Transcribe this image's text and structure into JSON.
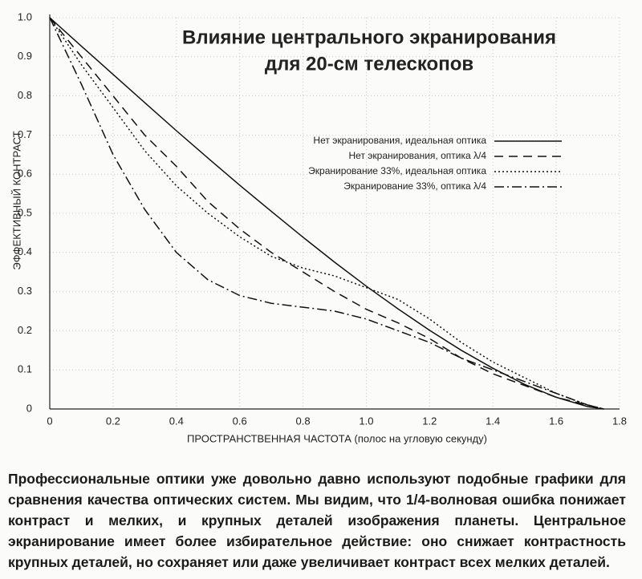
{
  "chart_data": {
    "type": "line",
    "title": [
      "Влияние центрального экранирования",
      "для 20-см телескопов"
    ],
    "x_label": "ПРОСТРАНСТВЕННАЯ ЧАСТОТА  (полос на угловую секунду)",
    "y_label": "ЭФФЕКТИВНЫЙ КОНТРАСТ",
    "x": [
      0,
      0.1,
      0.2,
      0.3,
      0.4,
      0.5,
      0.6,
      0.7,
      0.8,
      0.9,
      1.0,
      1.1,
      1.2,
      1.3,
      1.4,
      1.5,
      1.6,
      1.7,
      1.75
    ],
    "series": [
      {
        "name": "Нет экранирования, идеальная оптика",
        "color": "#111111",
        "dash": "",
        "values": [
          1,
          0.927,
          0.855,
          0.783,
          0.711,
          0.641,
          0.572,
          0.505,
          0.439,
          0.375,
          0.314,
          0.256,
          0.201,
          0.15,
          0.104,
          0.063,
          0.03,
          0.006,
          0
        ]
      },
      {
        "name": "Нет экранирования, оптика  λ/4",
        "color": "#111111",
        "dash": "11 7",
        "values": [
          1,
          0.9,
          0.8,
          0.7,
          0.62,
          0.53,
          0.46,
          0.4,
          0.35,
          0.3,
          0.255,
          0.22,
          0.18,
          0.13,
          0.09,
          0.06,
          0.03,
          0.01,
          0
        ]
      },
      {
        "name": "Экранирование 33%, идеальная оптика",
        "color": "#111111",
        "dash": "2 3",
        "values": [
          1,
          0.88,
          0.77,
          0.66,
          0.57,
          0.5,
          0.44,
          0.39,
          0.36,
          0.34,
          0.31,
          0.28,
          0.23,
          0.17,
          0.12,
          0.08,
          0.04,
          0.01,
          0
        ]
      },
      {
        "name": "Экранирование 33%, оптика  λ/4",
        "color": "#111111",
        "dash": "12 4 2 4",
        "values": [
          1,
          0.83,
          0.65,
          0.51,
          0.4,
          0.33,
          0.29,
          0.27,
          0.26,
          0.25,
          0.23,
          0.2,
          0.17,
          0.13,
          0.1,
          0.07,
          0.04,
          0.01,
          0
        ]
      }
    ],
    "xlim": [
      0,
      1.8
    ],
    "ylim": [
      0,
      1
    ],
    "xticks": [
      0,
      0.2,
      0.4,
      0.6,
      0.8,
      {
        "value": 1,
        "label": "1.0"
      },
      1.2,
      1.4,
      1.6,
      1.8
    ],
    "yticks": [
      0,
      0.1,
      0.2,
      0.3,
      0.4,
      0.5,
      0.6,
      0.7,
      0.8,
      0.9,
      {
        "value": 1,
        "label": "1.0"
      }
    ],
    "grid": true
  },
  "caption": "Профессиональные оптики уже довольно давно используют подобные графики для сравнения качества оптических систем. Мы видим, что 1/4-волновая ошибка понижает контраст и мелких, и крупных деталей изображения планеты. Центральное экранирование имеет более избирательное действие: оно снижает контрастность крупных деталей, но сохраняет или даже увеличивает контраст всех мелких деталей."
}
